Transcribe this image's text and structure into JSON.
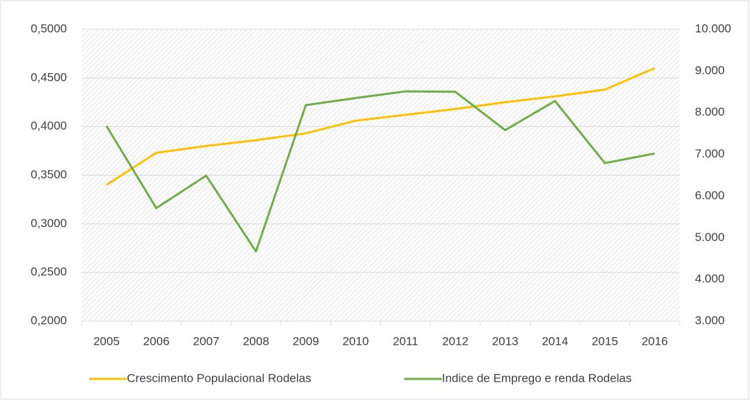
{
  "chart_data": {
    "type": "line",
    "categories": [
      "2005",
      "2006",
      "2007",
      "2008",
      "2009",
      "2010",
      "2011",
      "2012",
      "2013",
      "2014",
      "2015",
      "2016"
    ],
    "series": [
      {
        "name": "Crescimento Populacional Rodelas",
        "color": "#ffc000",
        "axis": "y",
        "values": [
          0.34,
          0.373,
          0.38,
          0.386,
          0.393,
          0.406,
          0.412,
          0.418,
          0.425,
          0.431,
          0.438,
          0.46
        ]
      },
      {
        "name": "Indice de Emprego e renda Rodelas",
        "color": "#70ad47",
        "axis": "y2",
        "values": [
          7.68,
          5.71,
          6.49,
          4.67,
          8.18,
          8.35,
          8.51,
          8.5,
          7.58,
          8.28,
          6.79,
          7.02
        ]
      }
    ],
    "ylim": [
      0.2,
      0.5
    ],
    "yticks": [
      {
        "value": 0.2,
        "label": "0,2000"
      },
      {
        "value": 0.25,
        "label": "0,2500"
      },
      {
        "value": 0.3,
        "label": "0,3000"
      },
      {
        "value": 0.35,
        "label": "0,3500"
      },
      {
        "value": 0.4,
        "label": "0,4000"
      },
      {
        "value": 0.45,
        "label": "0,4500"
      },
      {
        "value": 0.5,
        "label": "0,5000"
      }
    ],
    "y2lim": [
      3,
      10
    ],
    "y2ticks": [
      {
        "value": 3,
        "label": "3.000"
      },
      {
        "value": 4,
        "label": "4.000"
      },
      {
        "value": 5,
        "label": "5.000"
      },
      {
        "value": 6,
        "label": "6.000"
      },
      {
        "value": 7,
        "label": "7.000"
      },
      {
        "value": 8,
        "label": "8.000"
      },
      {
        "value": 9,
        "label": "9.000"
      },
      {
        "value": 10,
        "label": "10.000"
      }
    ],
    "grid": true,
    "legend": "bottom"
  }
}
